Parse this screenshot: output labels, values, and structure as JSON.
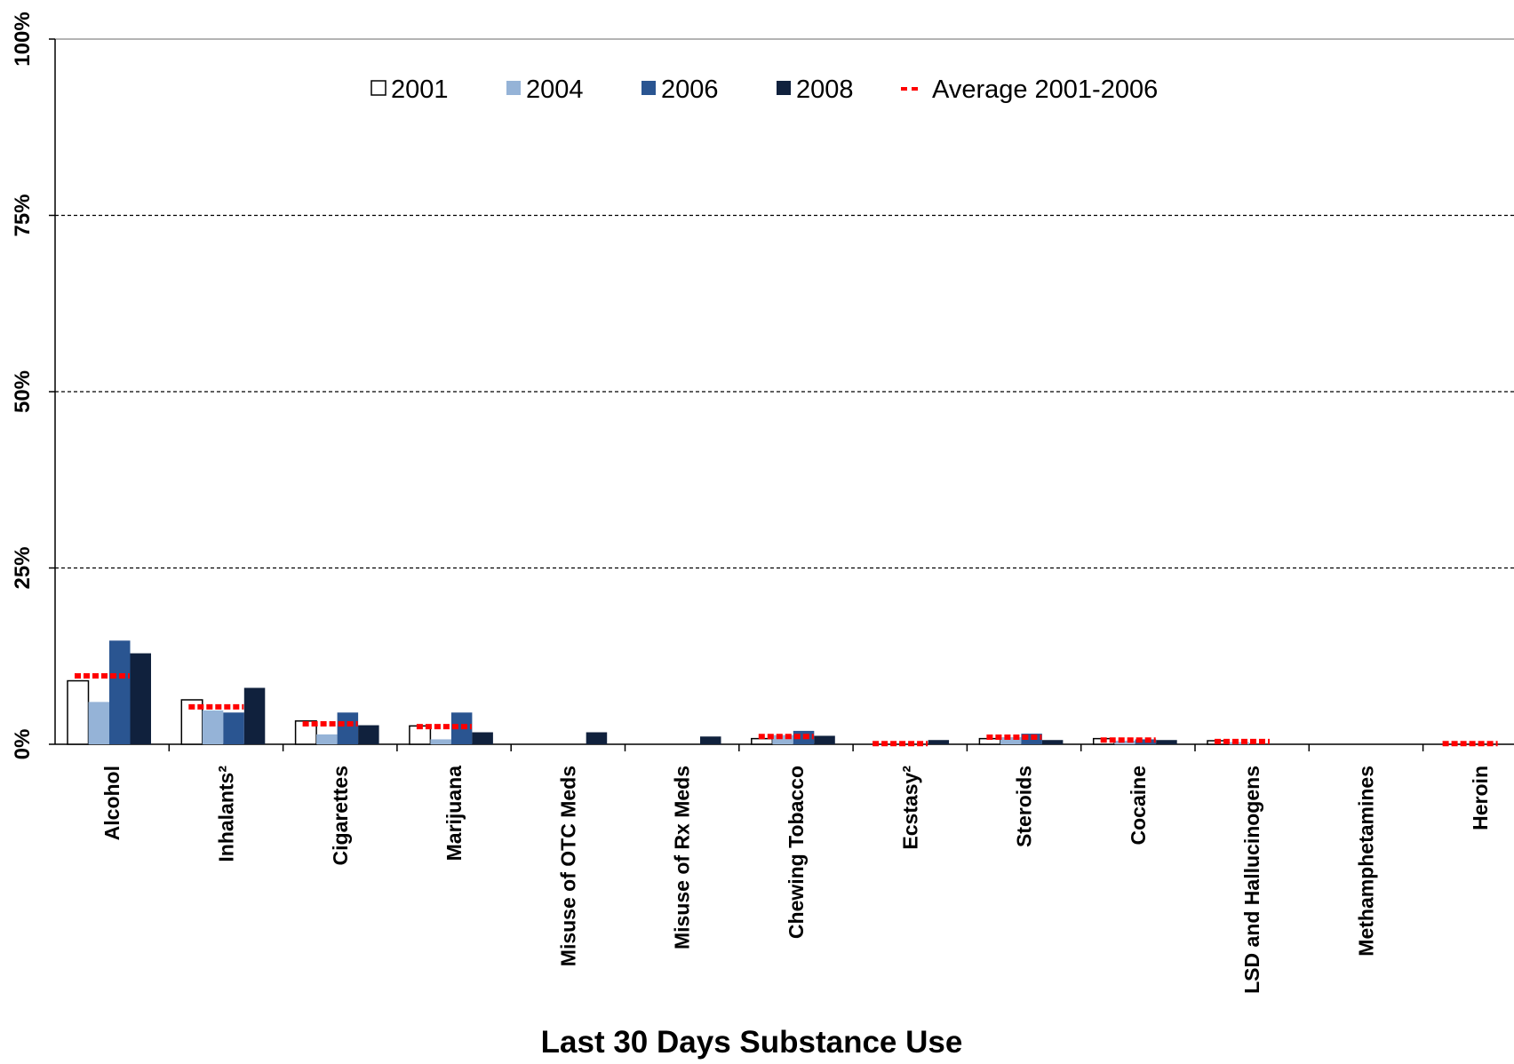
{
  "chart_data": {
    "type": "bar",
    "title": "",
    "xlabel": "Last 30 Days Substance Use",
    "ylabel": "",
    "ylim": [
      0,
      100
    ],
    "yticks": [
      "0%",
      "25%",
      "50%",
      "75%",
      "100%"
    ],
    "grid": true,
    "legend_position": "top",
    "categories": [
      "Alcohol",
      "Inhalants²",
      "Cigarettes",
      "Marijuana",
      "Misuse of OTC Meds",
      "Misuse of Rx Meds",
      "Chewing Tobacco",
      "Ecstasy²",
      "Steroids",
      "Cocaine",
      "LSD and Hallucinogens",
      "Methamphetamines",
      "Heroin"
    ],
    "series": [
      {
        "name": "2001",
        "color": "#ffffff",
        "values": [
          9.0,
          6.3,
          3.3,
          2.6,
          null,
          null,
          0.8,
          null,
          0.8,
          0.8,
          0.5,
          null,
          null
        ]
      },
      {
        "name": "2004",
        "color": "#95b3d7",
        "values": [
          6.0,
          4.8,
          1.4,
          0.7,
          null,
          null,
          1.3,
          null,
          1.0,
          0.5,
          0.3,
          null,
          null
        ]
      },
      {
        "name": "2006",
        "color": "#2a5591",
        "values": [
          14.7,
          4.5,
          4.5,
          4.5,
          null,
          null,
          1.9,
          null,
          1.5,
          0.7,
          null,
          null,
          null
        ]
      },
      {
        "name": "2008",
        "color": "#10213d",
        "values": [
          12.9,
          8.0,
          2.7,
          1.7,
          1.7,
          1.1,
          1.2,
          0.6,
          0.6,
          0.6,
          null,
          null,
          null
        ]
      }
    ],
    "average": {
      "name": "Average 2001-2006",
      "color": "#ff0000",
      "values": [
        9.7,
        5.3,
        2.9,
        2.5,
        null,
        null,
        1.1,
        0.1,
        1.0,
        0.6,
        0.4,
        null,
        0.1
      ]
    }
  }
}
